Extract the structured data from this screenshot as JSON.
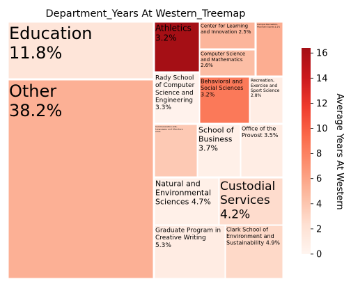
{
  "chart_data": {
    "type": "treemap",
    "title": "Department_Years At Western_Treemap",
    "colorbar_label": "Average Years At Western",
    "colorbar_ticks": [
      0,
      2,
      4,
      6,
      8,
      10,
      12,
      14,
      16
    ],
    "color_range": [
      0,
      16.4
    ],
    "colormap": [
      "#fff5f0",
      "#fee0d2",
      "#fcbba1",
      "#fc9272",
      "#fb6a4a",
      "#ef3b2c",
      "#cb181d",
      "#a50f15"
    ],
    "cells": [
      {
        "name": "Other",
        "label": "Other\n38.2%",
        "share": 38.2,
        "avg_years": 5.3
      },
      {
        "name": "Education",
        "label": "Education\n11.8%",
        "share": 11.8,
        "avg_years": 1.8
      },
      {
        "name": "Athletics",
        "label": "Athletics\n3.2%",
        "share": 3.2,
        "avg_years": 16.4
      },
      {
        "name": "Center for Learning and Innovation",
        "label": "Center for Learning\nand Innovation 2.5%",
        "share": 2.5,
        "avg_years": 5.0
      },
      {
        "name": "Computer Science and Mathematics",
        "label": "Computer Science\nand Mathematics\n2.6%",
        "share": 2.6,
        "avg_years": 4.5
      },
      {
        "name": "Campus Recreation, Mountain Sports",
        "label": "Campus Recreation,\nMountain Sports 2.1%",
        "share": 2.1,
        "avg_years": 5.5
      },
      {
        "name": "Rady School of Computer Science and Engineering",
        "label": "Rady School\nof Computer\nScience and\nEngineering\n3.3%",
        "share": 3.3,
        "avg_years": 0.3
      },
      {
        "name": "Behavioral and Social Sciences",
        "label": "Behavioral and\nSocial Sciences\n3.2%",
        "share": 3.2,
        "avg_years": 8.5
      },
      {
        "name": "Recreation, Exercise and Sport Science",
        "label": "Recreation,\nExercise and\nSport Science\n2.8%",
        "share": 2.8,
        "avg_years": 0.9
      },
      {
        "name": "Communication Arts, Languages, and Literature",
        "label": "Communication Arts,\nLanguages, and Literature\n2.5%",
        "share": 2.5,
        "avg_years": 3.8
      },
      {
        "name": "School of Business",
        "label": "School of\nBusiness\n3.7%",
        "share": 3.7,
        "avg_years": 0.6
      },
      {
        "name": "Office of the Provost",
        "label": "Office of the\nProvost 3.5%",
        "share": 3.5,
        "avg_years": 0.9
      },
      {
        "name": "Natural and Environmental Sciences",
        "label": "Natural and\nEnvironmental\nSciences 4.7%",
        "share": 4.7,
        "avg_years": 0.6
      },
      {
        "name": "Custodial Services",
        "label": "Custodial\nServices\n4.2%",
        "share": 4.2,
        "avg_years": 2.6
      },
      {
        "name": "Graduate Program in Creative Writing",
        "label": "Graduate Program in\nCreative Writing\n5.3%",
        "share": 5.3,
        "avg_years": 1.0
      },
      {
        "name": "Clark School of Environment and Sustainability",
        "label": "Clark School of\nEnvironment and\nSustainability 4.9%",
        "share": 4.9,
        "avg_years": 2.8
      }
    ]
  }
}
